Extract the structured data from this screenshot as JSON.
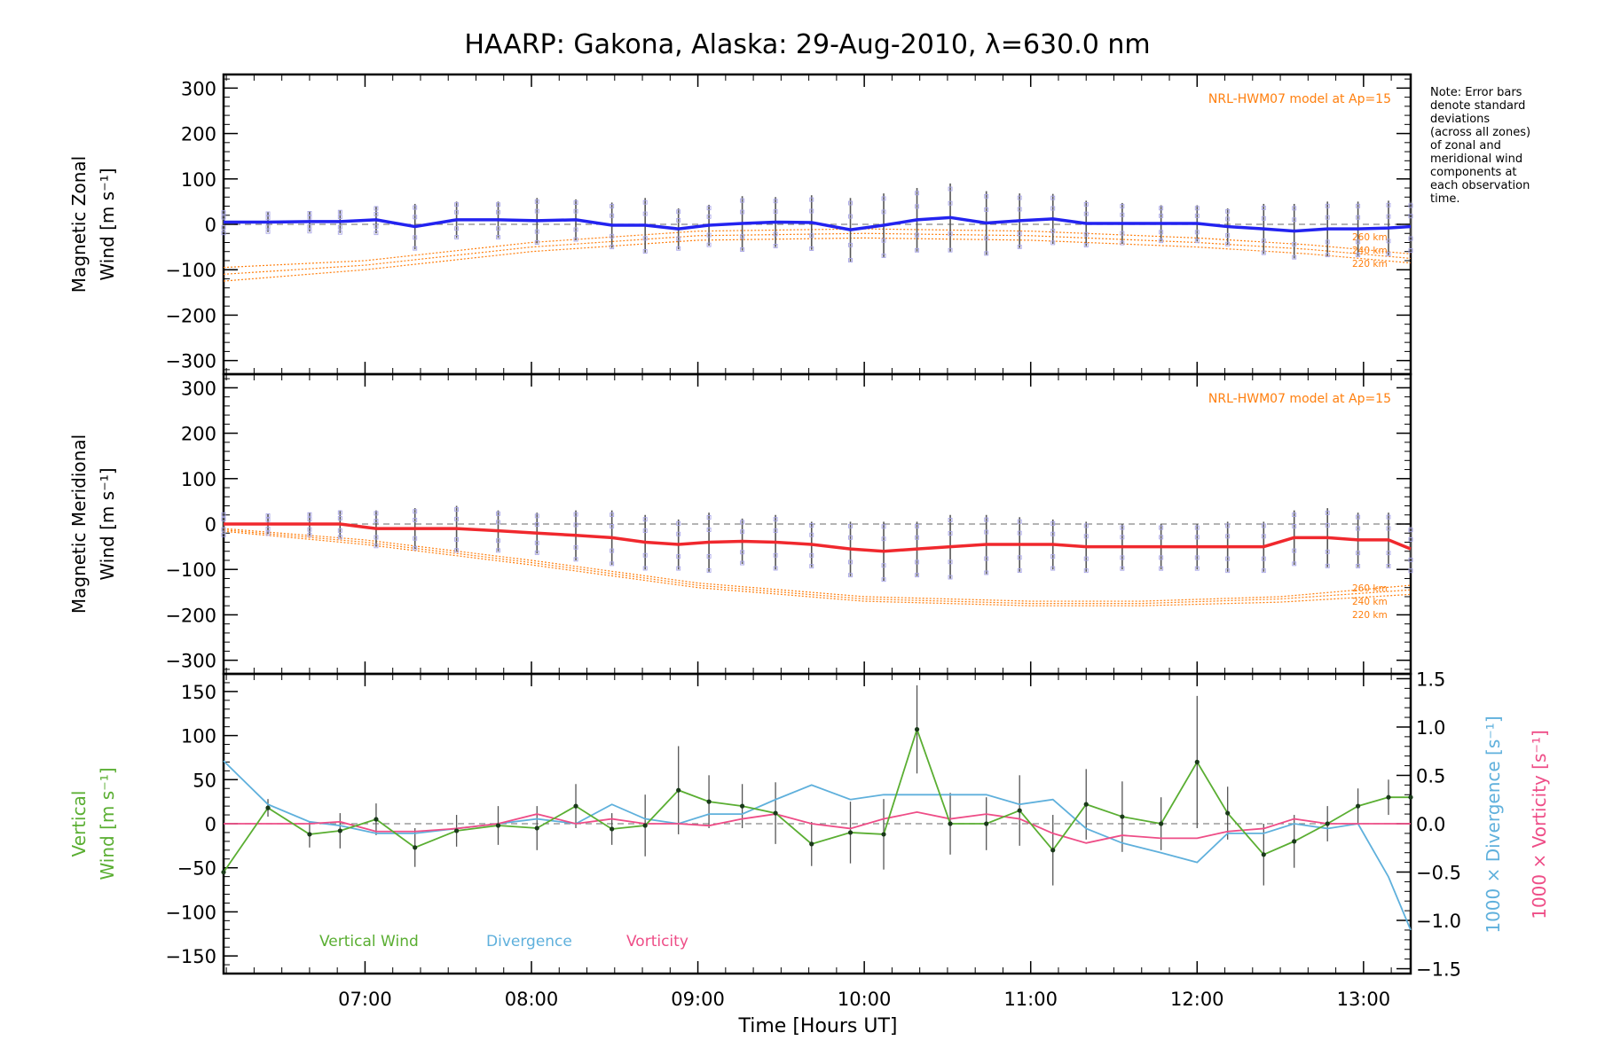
{
  "title": "HAARP: Gakona,  Alaska: 29-Aug-2010, λ=630.0 nm",
  "note_lines": [
    "Note: Error bars",
    "denote standard",
    "deviations",
    "(across all zones)",
    "of zonal and",
    "meridional wind",
    "components at",
    "each observation",
    "time."
  ],
  "colors": {
    "zonal": "#2323f0",
    "meridional": "#f0282d",
    "vertical": "#5aae32",
    "divergence": "#5fb0dc",
    "vorticity": "#ee4d87",
    "model": "#ff7f0e",
    "scatter": "#a9a6e8",
    "errorbar": "#555555",
    "zero_line": "#888888"
  },
  "chart_data": [
    {
      "type": "line",
      "panel": "zonal",
      "ylabel_lines": [
        "Magnetic Zonal",
        "Wind [m s⁻¹]"
      ],
      "xlim": [
        "06:09",
        "13:17"
      ],
      "ylim": [
        -330,
        330
      ],
      "yticks": [
        300,
        200,
        100,
        0,
        -100,
        -200,
        -300
      ],
      "ytick_labels": [
        "300",
        "200",
        "100",
        "0",
        "−100",
        "−200",
        "−300"
      ],
      "model_label": "NRL-HWM07 model at Ap=15",
      "model_altitude_labels": [
        "260 km",
        "240 km",
        "220 km"
      ],
      "x": [
        "06:09",
        "06:25",
        "06:40",
        "06:51",
        "07:04",
        "07:18",
        "07:33",
        "07:48",
        "08:02",
        "08:16",
        "08:29",
        "08:41",
        "08:53",
        "09:04",
        "09:16",
        "09:28",
        "09:41",
        "09:55",
        "10:07",
        "10:19",
        "10:31",
        "10:44",
        "10:56",
        "11:08",
        "11:20",
        "11:33",
        "11:47",
        "12:00",
        "12:11",
        "12:24",
        "12:35",
        "12:47",
        "12:58",
        "13:09",
        "13:17"
      ],
      "series": [
        {
          "values": [
            5,
            5,
            6,
            6,
            10,
            -5,
            10,
            10,
            8,
            10,
            -2,
            -2,
            -10,
            -2,
            2,
            5,
            4,
            -12,
            -2,
            10,
            15,
            3,
            8,
            12,
            2,
            2,
            2,
            2,
            -5,
            -10,
            -15,
            -10,
            -10,
            -8,
            -5
          ]
        }
      ],
      "error": [
        25,
        22,
        22,
        25,
        30,
        50,
        40,
        40,
        50,
        45,
        50,
        60,
        45,
        45,
        60,
        55,
        60,
        70,
        70,
        70,
        75,
        70,
        60,
        55,
        50,
        45,
        40,
        40,
        40,
        55,
        60,
        60,
        60,
        60,
        55
      ],
      "models": [
        {
          "name": "260 km",
          "x": [
            "06:09",
            "07:00",
            "08:00",
            "09:00",
            "10:00",
            "11:00",
            "12:00",
            "12:40",
            "13:17"
          ],
          "values": [
            -95,
            -80,
            -40,
            -15,
            -10,
            -15,
            -30,
            -45,
            -65
          ]
        },
        {
          "name": "240 km",
          "x": [
            "06:09",
            "07:00",
            "08:00",
            "09:00",
            "10:00",
            "11:00",
            "12:00",
            "12:40",
            "13:17"
          ],
          "values": [
            -110,
            -90,
            -50,
            -25,
            -20,
            -25,
            -40,
            -55,
            -75
          ]
        },
        {
          "name": "220 km",
          "x": [
            "06:09",
            "07:00",
            "08:00",
            "09:00",
            "10:00",
            "11:00",
            "12:00",
            "12:40",
            "13:17"
          ],
          "values": [
            -125,
            -100,
            -60,
            -35,
            -30,
            -35,
            -50,
            -65,
            -85
          ]
        }
      ]
    },
    {
      "type": "line",
      "panel": "meridional",
      "ylabel_lines": [
        "Magnetic Meridional",
        "Wind [m s⁻¹]"
      ],
      "xlim": [
        "06:09",
        "13:17"
      ],
      "ylim": [
        -330,
        330
      ],
      "yticks": [
        300,
        200,
        100,
        0,
        -100,
        -200,
        -300
      ],
      "ytick_labels": [
        "300",
        "200",
        "100",
        "0",
        "−100",
        "−200",
        "−300"
      ],
      "model_label": "NRL-HWM07 model at Ap=15",
      "model_altitude_labels": [
        "260 km",
        "240 km",
        "220 km"
      ],
      "x": [
        "06:09",
        "06:25",
        "06:40",
        "06:51",
        "07:04",
        "07:18",
        "07:33",
        "07:48",
        "08:02",
        "08:16",
        "08:29",
        "08:41",
        "08:53",
        "09:04",
        "09:16",
        "09:28",
        "09:41",
        "09:55",
        "10:07",
        "10:19",
        "10:31",
        "10:44",
        "10:56",
        "11:08",
        "11:20",
        "11:33",
        "11:47",
        "12:00",
        "12:11",
        "12:24",
        "12:35",
        "12:47",
        "12:58",
        "13:09",
        "13:17"
      ],
      "series": [
        {
          "values": [
            0,
            0,
            0,
            0,
            -10,
            -10,
            -10,
            -15,
            -20,
            -25,
            -30,
            -40,
            -45,
            -40,
            -38,
            -40,
            -45,
            -55,
            -60,
            -55,
            -50,
            -45,
            -45,
            -45,
            -50,
            -50,
            -50,
            -50,
            -50,
            -50,
            -30,
            -30,
            -35,
            -35,
            -55
          ]
        }
      ],
      "error": [
        25,
        22,
        25,
        30,
        40,
        45,
        50,
        45,
        45,
        55,
        60,
        60,
        55,
        65,
        50,
        60,
        50,
        60,
        65,
        60,
        70,
        65,
        60,
        55,
        55,
        50,
        50,
        50,
        55,
        55,
        60,
        65,
        60,
        60,
        50
      ],
      "models": [
        {
          "name": "260 km",
          "x": [
            "06:09",
            "07:00",
            "08:00",
            "09:00",
            "10:00",
            "11:00",
            "11:40",
            "12:30",
            "13:17"
          ],
          "values": [
            -10,
            -35,
            -80,
            -130,
            -160,
            -170,
            -170,
            -160,
            -135
          ]
        },
        {
          "name": "240 km",
          "x": [
            "06:09",
            "07:00",
            "08:00",
            "09:00",
            "10:00",
            "11:00",
            "11:40",
            "12:30",
            "13:17"
          ],
          "values": [
            -13,
            -40,
            -85,
            -135,
            -165,
            -175,
            -175,
            -165,
            -145
          ]
        },
        {
          "name": "220 km",
          "x": [
            "06:09",
            "07:00",
            "08:00",
            "09:00",
            "10:00",
            "11:00",
            "11:40",
            "12:30",
            "13:17"
          ],
          "values": [
            -16,
            -45,
            -90,
            -140,
            -170,
            -180,
            -180,
            -172,
            -155
          ]
        }
      ]
    },
    {
      "type": "line",
      "panel": "vertical",
      "ylabel_lines": [
        "Vertical",
        "Wind [m s⁻¹]"
      ],
      "right_ylabels": [
        "1000 × Divergence [s⁻¹]",
        "1000 × Vorticity [s⁻¹]"
      ],
      "xlabel": "Time [Hours UT]",
      "xlim": [
        "06:09",
        "13:17"
      ],
      "ylim": [
        -170,
        170
      ],
      "y2lim": [
        -1.55,
        1.55
      ],
      "yticks": [
        150,
        100,
        50,
        0,
        -50,
        -100,
        -150
      ],
      "ytick_labels": [
        "150",
        "100",
        "50",
        "0",
        "−50",
        "−100",
        "−150"
      ],
      "y2ticks": [
        1.5,
        1.0,
        0.5,
        0.0,
        -0.5,
        -1.0,
        -1.5
      ],
      "y2tick_labels": [
        "1.5",
        "1.0",
        "0.5",
        "0.0",
        "−0.5",
        "−1.0",
        "−1.5"
      ],
      "xticks": [
        "07:00",
        "08:00",
        "09:00",
        "10:00",
        "11:00",
        "12:00",
        "13:00"
      ],
      "legend": [
        "Vertical Wind",
        "Divergence",
        "Vorticity"
      ],
      "series": [
        {
          "name": "Vertical Wind",
          "x": [
            "06:09",
            "06:25",
            "06:40",
            "06:51",
            "07:04",
            "07:18",
            "07:33",
            "07:48",
            "08:02",
            "08:16",
            "08:29",
            "08:41",
            "08:53",
            "09:04",
            "09:16",
            "09:28",
            "09:41",
            "09:55",
            "10:07",
            "10:19",
            "10:31",
            "10:44",
            "10:56",
            "11:08",
            "11:20",
            "11:33",
            "11:47",
            "12:00",
            "12:11",
            "12:24",
            "12:35",
            "12:47",
            "12:58",
            "13:09",
            "13:17"
          ],
          "values": [
            -55,
            18,
            -12,
            -8,
            5,
            -27,
            -8,
            -2,
            -5,
            20,
            -6,
            -2,
            38,
            25,
            20,
            12,
            -23,
            -10,
            -12,
            107,
            0,
            0,
            15,
            -30,
            22,
            8,
            0,
            70,
            12,
            -35,
            -20,
            0,
            20,
            30,
            30
          ],
          "error": [
            0,
            10,
            15,
            20,
            18,
            22,
            18,
            22,
            25,
            25,
            18,
            35,
            50,
            30,
            25,
            35,
            25,
            35,
            40,
            50,
            35,
            30,
            40,
            40,
            40,
            40,
            30,
            75,
            30,
            35,
            30,
            20,
            20,
            20,
            0
          ]
        },
        {
          "name": "Divergence",
          "x": [
            "06:09",
            "06:25",
            "06:40",
            "06:51",
            "07:04",
            "07:18",
            "07:33",
            "07:48",
            "08:02",
            "08:16",
            "08:29",
            "08:41",
            "08:53",
            "09:04",
            "09:16",
            "09:28",
            "09:41",
            "09:55",
            "10:07",
            "10:19",
            "10:31",
            "10:44",
            "10:56",
            "11:08",
            "11:20",
            "11:33",
            "11:47",
            "12:00",
            "12:11",
            "12:24",
            "12:35",
            "12:47",
            "12:58",
            "13:09",
            "13:17"
          ],
          "values": [
            0.65,
            0.2,
            0.02,
            -0.02,
            -0.1,
            -0.1,
            -0.05,
            0.0,
            0.05,
            0.0,
            0.2,
            0.05,
            0.0,
            0.1,
            0.1,
            0.25,
            0.4,
            0.25,
            0.3,
            0.3,
            0.3,
            0.3,
            0.2,
            0.25,
            -0.05,
            -0.2,
            -0.3,
            -0.4,
            -0.1,
            -0.1,
            0.0,
            -0.05,
            0.0,
            -0.55,
            -1.1
          ]
        },
        {
          "name": "Vorticity",
          "x": [
            "06:09",
            "06:25",
            "06:40",
            "06:51",
            "07:04",
            "07:18",
            "07:33",
            "07:48",
            "08:02",
            "08:16",
            "08:29",
            "08:41",
            "08:53",
            "09:04",
            "09:16",
            "09:28",
            "09:41",
            "09:55",
            "10:07",
            "10:19",
            "10:31",
            "10:44",
            "10:56",
            "11:08",
            "11:20",
            "11:33",
            "11:47",
            "12:00",
            "12:11",
            "12:24",
            "12:35",
            "12:47",
            "12:58",
            "13:09",
            "13:17"
          ],
          "values": [
            0.0,
            0.0,
            0.0,
            0.02,
            -0.08,
            -0.08,
            -0.05,
            0.0,
            0.1,
            0.0,
            0.05,
            0.0,
            0.0,
            -0.02,
            0.05,
            0.1,
            0.0,
            -0.05,
            0.05,
            0.12,
            0.05,
            0.1,
            0.05,
            -0.1,
            -0.2,
            -0.12,
            -0.15,
            -0.15,
            -0.08,
            -0.05,
            0.05,
            0.0,
            0.0,
            0.0,
            0.0
          ]
        }
      ]
    }
  ]
}
